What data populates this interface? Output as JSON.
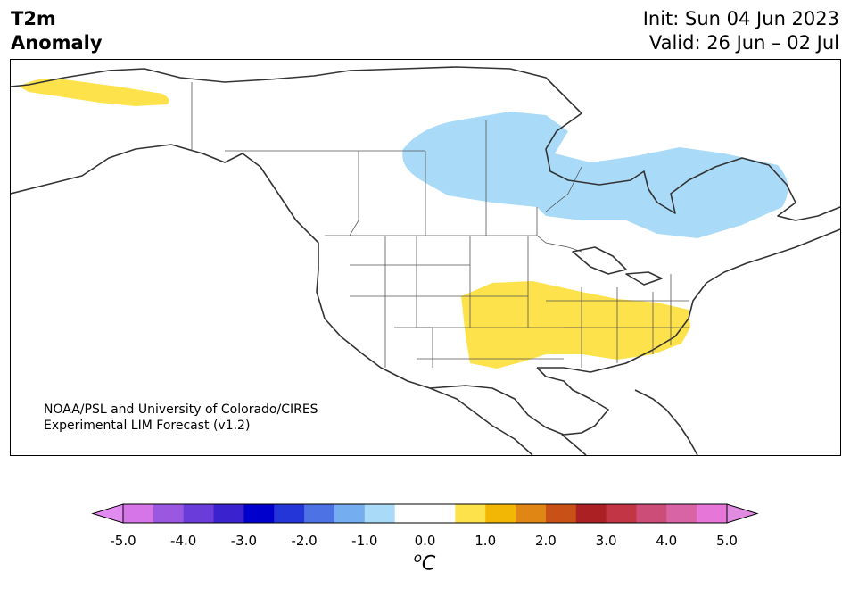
{
  "header": {
    "variable": "T2m",
    "type": "Anomaly",
    "init": "Init: Sun 04 Jun 2023",
    "valid": "Valid: 26 Jun – 02 Jul"
  },
  "credit": {
    "line1": "NOAA/PSL and University of Colorado/CIRES",
    "line2": "Experimental LIM Forecast (v1.2)"
  },
  "colorbar": {
    "unit": "°C",
    "ticks": [
      "-5.0",
      "-4.0",
      "-3.0",
      "-2.0",
      "-1.0",
      "0.0",
      "1.0",
      "2.0",
      "3.0",
      "4.0",
      "5.0"
    ],
    "colors": [
      "#d675e8",
      "#9a57e0",
      "#6a3ddb",
      "#3a22cf",
      "#0000cd",
      "#2436d8",
      "#4d72e3",
      "#75aef0",
      "#a9dbf9",
      "#ffffff",
      "#ffffff",
      "#fde24c",
      "#f2b705",
      "#e08614",
      "#c85117",
      "#ab2023",
      "#c23545",
      "#cc4d78",
      "#d864a6",
      "#e676d7"
    ],
    "under_color": "#e18aef",
    "over_color": "#e08ae0"
  },
  "anomaly_colors": {
    "cold": "#a9dbf9",
    "warm": "#fde24c"
  }
}
